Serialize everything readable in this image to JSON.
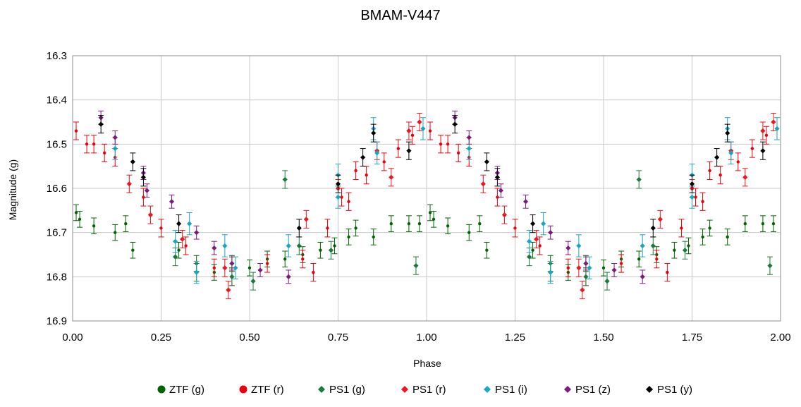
{
  "chart_data": {
    "type": "scatter",
    "title": "BMAM-V447",
    "xlabel": "Phase",
    "ylabel": "Magnitude (g)",
    "xlim": [
      0.0,
      2.0
    ],
    "ylim": [
      16.3,
      16.9
    ],
    "y_reversed": true,
    "grid": true,
    "legend_position": "bottom",
    "x_tick_labels": [
      "0.00",
      "0.25",
      "0.50",
      "0.75",
      "1.00",
      "1.25",
      "1.50",
      "1.75",
      "2.00"
    ],
    "y_tick_labels": [
      "16.3",
      "16.4",
      "16.5",
      "16.6",
      "16.7",
      "16.8",
      "16.9"
    ],
    "series": [
      {
        "name": "ZTF (g)",
        "color": "#006400",
        "marker": "circle",
        "err": 0.018,
        "points": [
          [
            0.01,
            16.655
          ],
          [
            0.02,
            16.67
          ],
          [
            0.06,
            16.685
          ],
          [
            0.12,
            16.7
          ],
          [
            0.15,
            16.68
          ],
          [
            0.17,
            16.74
          ],
          [
            0.3,
            16.74
          ],
          [
            0.35,
            16.77
          ],
          [
            0.4,
            16.79
          ],
          [
            0.45,
            16.77
          ],
          [
            0.5,
            16.78
          ],
          [
            0.55,
            16.76
          ],
          [
            0.6,
            16.76
          ],
          [
            0.65,
            16.75
          ],
          [
            0.7,
            16.74
          ],
          [
            0.74,
            16.73
          ],
          [
            0.78,
            16.71
          ],
          [
            0.8,
            16.69
          ],
          [
            0.85,
            16.71
          ],
          [
            0.9,
            16.68
          ],
          [
            0.95,
            16.68
          ],
          [
            0.98,
            16.68
          ],
          [
            1.01,
            16.655
          ],
          [
            1.02,
            16.67
          ],
          [
            1.06,
            16.685
          ],
          [
            1.12,
            16.7
          ],
          [
            1.15,
            16.68
          ],
          [
            1.17,
            16.74
          ],
          [
            1.3,
            16.74
          ],
          [
            1.35,
            16.77
          ],
          [
            1.4,
            16.79
          ],
          [
            1.45,
            16.77
          ],
          [
            1.5,
            16.78
          ],
          [
            1.55,
            16.76
          ],
          [
            1.6,
            16.76
          ],
          [
            1.65,
            16.75
          ],
          [
            1.7,
            16.74
          ],
          [
            1.74,
            16.73
          ],
          [
            1.78,
            16.71
          ],
          [
            1.8,
            16.69
          ],
          [
            1.85,
            16.71
          ],
          [
            1.9,
            16.68
          ],
          [
            1.95,
            16.68
          ],
          [
            1.98,
            16.68
          ]
        ]
      },
      {
        "name": "ZTF (r)",
        "color": "#e8000b",
        "marker": "circle",
        "err": 0.02,
        "points": [
          [
            0.01,
            16.47
          ],
          [
            0.04,
            16.5
          ],
          [
            0.06,
            16.5
          ],
          [
            0.09,
            16.52
          ],
          [
            0.12,
            16.53
          ],
          [
            0.2,
            16.62
          ],
          [
            0.25,
            16.69
          ],
          [
            0.32,
            16.73
          ],
          [
            0.4,
            16.78
          ],
          [
            0.45,
            16.8
          ],
          [
            0.55,
            16.77
          ],
          [
            0.65,
            16.76
          ],
          [
            0.68,
            16.79
          ],
          [
            0.72,
            16.69
          ],
          [
            0.76,
            16.62
          ],
          [
            0.78,
            16.63
          ],
          [
            0.8,
            16.56
          ],
          [
            0.83,
            16.57
          ],
          [
            0.88,
            16.54
          ],
          [
            0.92,
            16.51
          ],
          [
            0.96,
            16.48
          ],
          [
            1.01,
            16.47
          ],
          [
            1.04,
            16.5
          ],
          [
            1.06,
            16.5
          ],
          [
            1.09,
            16.52
          ],
          [
            1.12,
            16.53
          ],
          [
            1.2,
            16.62
          ],
          [
            1.25,
            16.69
          ],
          [
            1.32,
            16.73
          ],
          [
            1.4,
            16.78
          ],
          [
            1.45,
            16.8
          ],
          [
            1.55,
            16.77
          ],
          [
            1.65,
            16.76
          ],
          [
            1.68,
            16.79
          ],
          [
            1.72,
            16.69
          ],
          [
            1.76,
            16.62
          ],
          [
            1.78,
            16.63
          ],
          [
            1.8,
            16.56
          ],
          [
            1.83,
            16.57
          ],
          [
            1.88,
            16.54
          ],
          [
            1.92,
            16.51
          ],
          [
            1.96,
            16.48
          ]
        ]
      },
      {
        "name": "PS1 (g)",
        "color": "#1a7a3c",
        "marker": "diamond",
        "err": 0.02,
        "points": [
          [
            0.29,
            16.755
          ],
          [
            0.6,
            16.58
          ],
          [
            0.97,
            16.775
          ],
          [
            0.51,
            16.81
          ],
          [
            0.45,
            16.8
          ],
          [
            0.73,
            16.74
          ],
          [
            0.64,
            16.73
          ],
          [
            0.35,
            16.79
          ],
          [
            1.29,
            16.755
          ],
          [
            1.6,
            16.58
          ],
          [
            1.97,
            16.775
          ],
          [
            1.51,
            16.81
          ],
          [
            1.45,
            16.8
          ],
          [
            1.73,
            16.74
          ],
          [
            1.64,
            16.73
          ],
          [
            1.35,
            16.79
          ]
        ]
      },
      {
        "name": "PS1 (r)",
        "color": "#f0141e",
        "marker": "diamond",
        "err": 0.02,
        "points": [
          [
            0.16,
            16.59
          ],
          [
            0.22,
            16.66
          ],
          [
            0.31,
            16.715
          ],
          [
            0.43,
            16.78
          ],
          [
            0.44,
            16.83
          ],
          [
            0.66,
            16.67
          ],
          [
            0.75,
            16.6
          ],
          [
            0.86,
            16.515
          ],
          [
            0.9,
            16.575
          ],
          [
            0.95,
            16.47
          ],
          [
            0.98,
            16.45
          ],
          [
            1.16,
            16.59
          ],
          [
            1.22,
            16.66
          ],
          [
            1.31,
            16.715
          ],
          [
            1.43,
            16.78
          ],
          [
            1.44,
            16.83
          ],
          [
            1.66,
            16.67
          ],
          [
            1.75,
            16.6
          ],
          [
            1.86,
            16.515
          ],
          [
            1.9,
            16.575
          ],
          [
            1.95,
            16.47
          ],
          [
            1.98,
            16.45
          ]
        ]
      },
      {
        "name": "PS1 (i)",
        "color": "#19a6c4",
        "marker": "diamond",
        "err": 0.025,
        "points": [
          [
            0.12,
            16.51
          ],
          [
            0.29,
            16.72
          ],
          [
            0.33,
            16.68
          ],
          [
            0.35,
            16.79
          ],
          [
            0.43,
            16.73
          ],
          [
            0.46,
            16.78
          ],
          [
            0.61,
            16.73
          ],
          [
            0.75,
            16.57
          ],
          [
            0.75,
            16.62
          ],
          [
            0.85,
            16.465
          ],
          [
            0.86,
            16.52
          ],
          [
            0.99,
            16.465
          ],
          [
            1.12,
            16.51
          ],
          [
            1.29,
            16.72
          ],
          [
            1.33,
            16.68
          ],
          [
            1.35,
            16.79
          ],
          [
            1.43,
            16.73
          ],
          [
            1.46,
            16.78
          ],
          [
            1.61,
            16.73
          ],
          [
            1.75,
            16.57
          ],
          [
            1.75,
            16.62
          ],
          [
            1.85,
            16.465
          ],
          [
            1.86,
            16.52
          ],
          [
            1.99,
            16.465
          ]
        ]
      },
      {
        "name": "PS1 (z)",
        "color": "#7b1b7e",
        "marker": "diamond",
        "err": 0.015,
        "points": [
          [
            0.08,
            16.44
          ],
          [
            0.12,
            16.485
          ],
          [
            0.2,
            16.565
          ],
          [
            0.21,
            16.605
          ],
          [
            0.28,
            16.63
          ],
          [
            0.35,
            16.7
          ],
          [
            0.4,
            16.735
          ],
          [
            0.45,
            16.77
          ],
          [
            0.53,
            16.785
          ],
          [
            0.61,
            16.8
          ],
          [
            1.08,
            16.44
          ],
          [
            1.12,
            16.485
          ],
          [
            1.2,
            16.565
          ],
          [
            1.21,
            16.605
          ],
          [
            1.28,
            16.63
          ],
          [
            1.35,
            16.7
          ],
          [
            1.4,
            16.735
          ],
          [
            1.45,
            16.77
          ],
          [
            1.53,
            16.785
          ],
          [
            1.61,
            16.8
          ]
        ]
      },
      {
        "name": "PS1 (y)",
        "color": "#000000",
        "marker": "diamond",
        "err": 0.02,
        "points": [
          [
            0.08,
            16.455
          ],
          [
            0.17,
            16.54
          ],
          [
            0.2,
            16.575
          ],
          [
            0.3,
            16.68
          ],
          [
            0.64,
            16.69
          ],
          [
            0.75,
            16.59
          ],
          [
            0.82,
            16.53
          ],
          [
            0.85,
            16.475
          ],
          [
            0.95,
            16.515
          ],
          [
            1.08,
            16.455
          ],
          [
            1.17,
            16.54
          ],
          [
            1.2,
            16.575
          ],
          [
            1.3,
            16.68
          ],
          [
            1.64,
            16.69
          ],
          [
            1.75,
            16.59
          ],
          [
            1.82,
            16.53
          ],
          [
            1.85,
            16.475
          ],
          [
            1.95,
            16.515
          ]
        ]
      }
    ]
  }
}
